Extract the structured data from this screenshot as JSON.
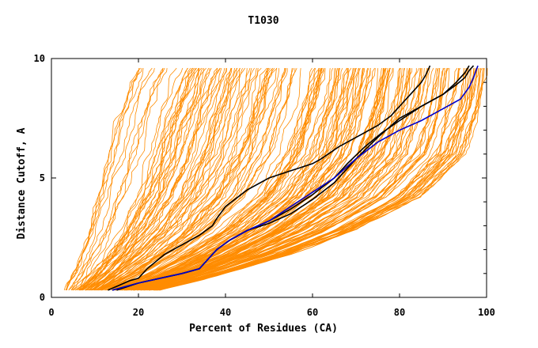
{
  "chart_data": {
    "type": "line",
    "title": "T1030",
    "xlabel": "Percent of Residues (CA)",
    "ylabel": "Distance Cutoff, A",
    "xlim": [
      0,
      100
    ],
    "ylim": [
      0,
      10
    ],
    "x_ticks": [
      0,
      20,
      40,
      60,
      80,
      100
    ],
    "y_ticks": [
      0,
      5,
      10
    ],
    "x_tick_labels": [
      "0",
      "20",
      "40",
      "60",
      "80",
      "100"
    ],
    "y_tick_labels": [
      "0",
      "5",
      "10"
    ],
    "grid": false,
    "legend": "none",
    "colors": {
      "many_models": "#ff8c00",
      "highlight_black": "#000000",
      "highlight_blue": "#0000cc"
    },
    "note_many_models": "approximately 200 orange model curves spanning the area between the bands below",
    "orange_band": {
      "left_edge": {
        "x": [
          3,
          5,
          7,
          9,
          12,
          15,
          18,
          20
        ],
        "y": [
          0.3,
          1.0,
          2.0,
          3.5,
          5.5,
          7.5,
          9.0,
          9.7
        ]
      },
      "right_edge": {
        "x": [
          25,
          40,
          55,
          70,
          85,
          95,
          99,
          100
        ],
        "y": [
          0.3,
          1.0,
          1.8,
          2.8,
          4.2,
          6.0,
          8.0,
          9.7
        ]
      }
    },
    "series": [
      {
        "color": "#000000",
        "x": [
          13,
          18,
          20,
          22,
          26,
          30,
          34,
          37,
          38,
          40,
          45,
          50,
          55,
          60,
          62,
          66,
          70,
          75,
          78,
          80,
          83,
          85,
          86,
          87
        ],
        "y": [
          0.3,
          0.7,
          0.8,
          1.2,
          1.8,
          2.2,
          2.6,
          3.0,
          3.3,
          3.8,
          4.5,
          5.0,
          5.3,
          5.6,
          5.8,
          6.3,
          6.7,
          7.2,
          7.6,
          8.0,
          8.6,
          9.0,
          9.3,
          9.7
        ]
      },
      {
        "color": "#000000",
        "x": [
          14,
          20,
          25,
          30,
          34,
          36,
          38,
          41,
          45,
          50,
          55,
          60,
          65,
          68,
          72,
          76,
          80,
          85,
          90,
          93,
          95,
          96,
          97
        ],
        "y": [
          0.3,
          0.6,
          0.8,
          1.0,
          1.2,
          1.6,
          2.0,
          2.4,
          2.8,
          3.2,
          3.7,
          4.3,
          5.0,
          5.6,
          6.3,
          6.9,
          7.4,
          8.0,
          8.5,
          8.9,
          9.2,
          9.5,
          9.7
        ]
      },
      {
        "color": "#000000",
        "x": [
          15,
          20,
          25,
          30,
          34,
          36,
          38,
          41,
          45,
          50,
          55,
          60,
          65,
          70,
          75,
          80,
          85,
          90,
          93,
          95,
          96
        ],
        "y": [
          0.3,
          0.6,
          0.8,
          1.0,
          1.2,
          1.6,
          2.0,
          2.4,
          2.8,
          3.1,
          3.5,
          4.1,
          4.8,
          5.8,
          6.7,
          7.5,
          8.0,
          8.5,
          9.0,
          9.4,
          9.7
        ]
      },
      {
        "color": "#0000cc",
        "x": [
          14,
          20,
          25,
          30,
          34,
          36,
          38,
          41,
          45,
          50,
          55,
          60,
          65,
          70,
          75,
          80,
          85,
          90,
          94,
          96,
          97,
          98
        ],
        "y": [
          0.3,
          0.6,
          0.8,
          1.0,
          1.2,
          1.6,
          2.0,
          2.4,
          2.8,
          3.2,
          3.8,
          4.4,
          5.0,
          5.8,
          6.5,
          7.0,
          7.4,
          7.9,
          8.3,
          8.8,
          9.2,
          9.7
        ]
      }
    ]
  }
}
